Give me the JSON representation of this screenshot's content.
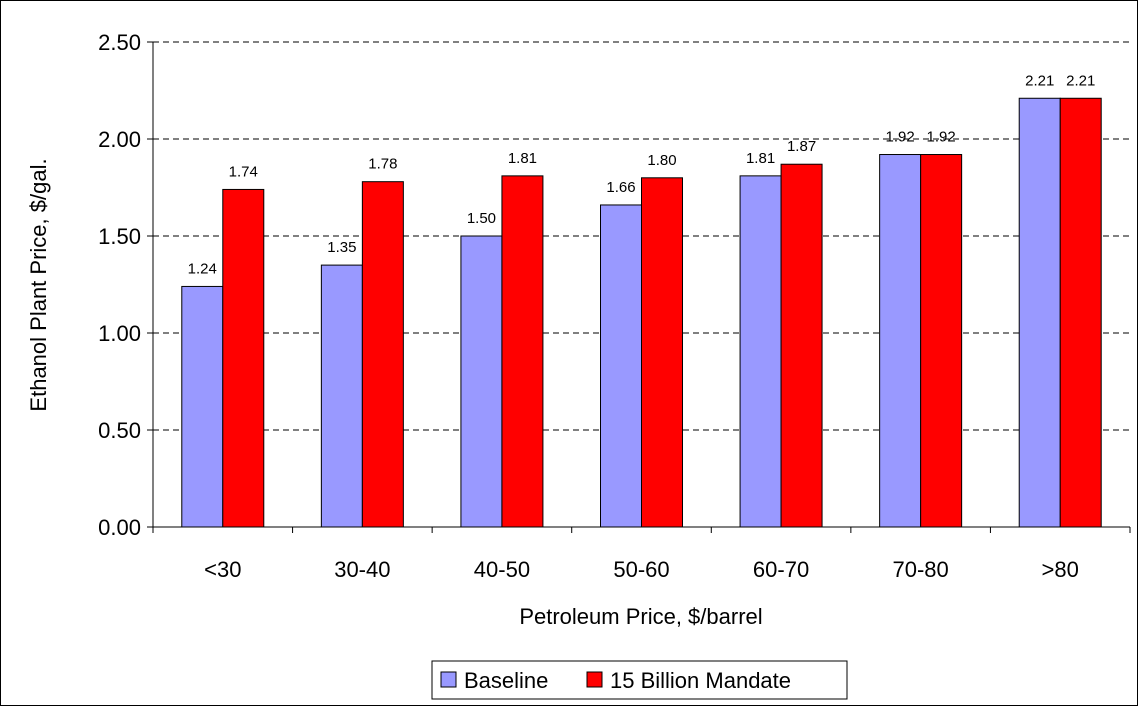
{
  "chart_data": {
    "type": "bar",
    "xlabel": "Petroleum Price, $/barrel",
    "ylabel": "Ethanol Plant Price, $/gal.",
    "categories": [
      "<30",
      "30-40",
      "40-50",
      "50-60",
      "60-70",
      "70-80",
      ">80"
    ],
    "ylim": [
      0,
      2.5
    ],
    "yticks": [
      "0.00",
      "0.50",
      "1.00",
      "1.50",
      "2.00",
      "2.50"
    ],
    "grid": "horizontal dashed",
    "legend_position": "bottom",
    "series": [
      {
        "name": "Baseline",
        "color": "#9999ff",
        "values": [
          1.24,
          1.35,
          1.5,
          1.66,
          1.81,
          1.92,
          2.21
        ],
        "labels": [
          "1.24",
          "1.35",
          "1.50",
          "1.66",
          "1.81",
          "1.92",
          "2.21"
        ]
      },
      {
        "name": "15 Billion Mandate",
        "color": "#ff0000",
        "values": [
          1.74,
          1.78,
          1.81,
          1.8,
          1.87,
          1.92,
          2.21
        ],
        "labels": [
          "1.74",
          "1.78",
          "1.81",
          "1.80",
          "1.87",
          "1.92",
          "2.21"
        ]
      }
    ]
  }
}
